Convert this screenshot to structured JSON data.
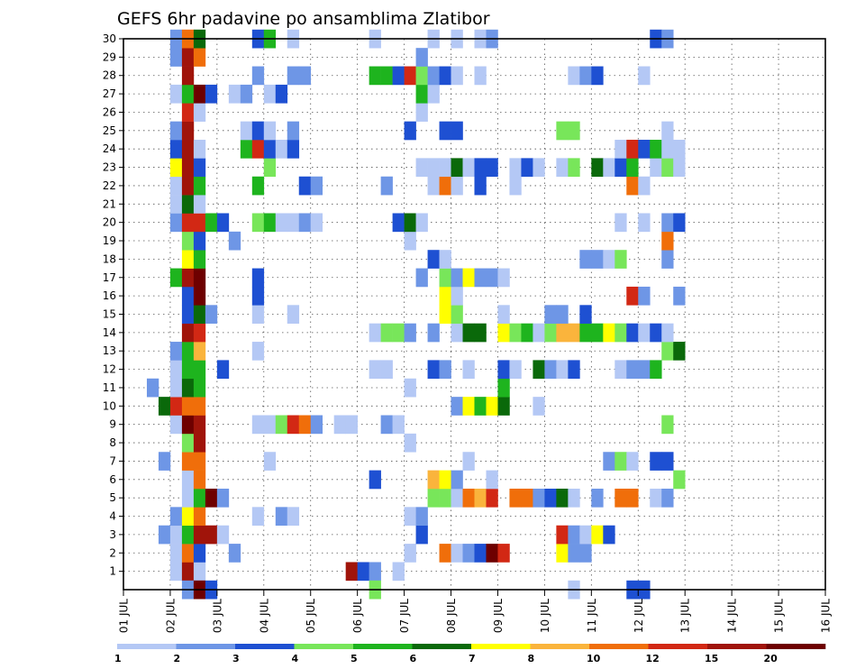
{
  "chart_data": {
    "type": "heatmap",
    "title": "GEFS 6hr padavine po ansamblima Zlatibor",
    "xlabel": "",
    "ylabel": "",
    "x_ticks": [
      "01 JUL",
      "02 JUL",
      "03 JUL",
      "04 JUL",
      "05 JUL",
      "06 JUL",
      "07 JUL",
      "08 JUL",
      "09 JUL",
      "10 JUL",
      "11 JUL",
      "12 JUL",
      "13 JUL",
      "14 JUL",
      "15 JUL",
      "16 JUL"
    ],
    "y_ticks": [
      "1",
      "2",
      "3",
      "4",
      "5",
      "6",
      "7",
      "8",
      "9",
      "10",
      "11",
      "12",
      "13",
      "14",
      "15",
      "16",
      "17",
      "18",
      "19",
      "20",
      "21",
      "22",
      "23",
      "24",
      "25",
      "26",
      "27",
      "28",
      "29",
      "30"
    ],
    "xlim": [
      "01 JUL 00Z",
      "16 JUL 00Z"
    ],
    "ylim": [
      0,
      30
    ],
    "time_step_hours": 6,
    "grid": true,
    "colorbar": {
      "levels": [
        "1",
        "2",
        "3",
        "4",
        "5",
        "6",
        "7",
        "8",
        "10",
        "12",
        "15",
        "20"
      ],
      "colors": [
        "#b4c8f5",
        "#6e96e6",
        "#1e50d2",
        "#78e65a",
        "#1eb41e",
        "#0a690a",
        "#ffff00",
        "#fab43c",
        "#f06e0a",
        "#d22814",
        "#a0140a",
        "#6e0000"
      ]
    },
    "cells": [
      [
        1,
        4,
        1
      ],
      [
        1,
        5,
        11
      ],
      [
        1,
        6,
        1
      ],
      [
        1,
        19,
        11
      ],
      [
        1,
        20,
        3
      ],
      [
        1,
        21,
        2
      ],
      [
        1,
        23,
        1
      ],
      [
        2,
        4,
        1
      ],
      [
        2,
        5,
        9
      ],
      [
        2,
        6,
        3
      ],
      [
        2,
        9,
        2
      ],
      [
        2,
        24,
        1
      ],
      [
        2,
        27,
        9
      ],
      [
        2,
        28,
        1
      ],
      [
        2,
        29,
        2
      ],
      [
        2,
        30,
        3
      ],
      [
        2,
        31,
        12
      ],
      [
        2,
        32,
        10
      ],
      [
        2,
        37,
        7
      ],
      [
        2,
        38,
        2
      ],
      [
        2,
        39,
        2
      ],
      [
        3,
        3,
        2
      ],
      [
        3,
        4,
        1
      ],
      [
        3,
        5,
        5
      ],
      [
        3,
        6,
        11
      ],
      [
        3,
        7,
        11
      ],
      [
        3,
        8,
        1
      ],
      [
        3,
        25,
        3
      ],
      [
        3,
        37,
        10
      ],
      [
        3,
        38,
        2
      ],
      [
        3,
        39,
        1
      ],
      [
        3,
        40,
        7
      ],
      [
        3,
        41,
        3
      ],
      [
        4,
        4,
        2
      ],
      [
        4,
        5,
        7
      ],
      [
        4,
        6,
        9
      ],
      [
        4,
        11,
        1
      ],
      [
        4,
        13,
        2
      ],
      [
        4,
        14,
        1
      ],
      [
        4,
        24,
        1
      ],
      [
        4,
        25,
        2
      ],
      [
        5,
        5,
        1
      ],
      [
        5,
        6,
        5
      ],
      [
        5,
        7,
        12
      ],
      [
        5,
        8,
        2
      ],
      [
        5,
        26,
        4
      ],
      [
        5,
        27,
        4
      ],
      [
        5,
        28,
        1
      ],
      [
        5,
        29,
        9
      ],
      [
        5,
        30,
        8
      ],
      [
        5,
        31,
        10
      ],
      [
        5,
        33,
        9
      ],
      [
        5,
        34,
        9
      ],
      [
        5,
        35,
        2
      ],
      [
        5,
        36,
        3
      ],
      [
        5,
        37,
        6
      ],
      [
        5,
        38,
        1
      ],
      [
        5,
        40,
        2
      ],
      [
        5,
        42,
        9
      ],
      [
        5,
        43,
        9
      ],
      [
        5,
        45,
        1
      ],
      [
        5,
        46,
        2
      ],
      [
        6,
        5,
        1
      ],
      [
        6,
        6,
        9
      ],
      [
        6,
        21,
        3
      ],
      [
        6,
        26,
        8
      ],
      [
        6,
        27,
        7
      ],
      [
        6,
        28,
        2
      ],
      [
        6,
        31,
        1
      ],
      [
        6,
        47,
        4
      ],
      [
        7,
        3,
        2
      ],
      [
        7,
        5,
        9
      ],
      [
        7,
        6,
        9
      ],
      [
        7,
        12,
        1
      ],
      [
        7,
        29,
        1
      ],
      [
        7,
        41,
        2
      ],
      [
        7,
        42,
        4
      ],
      [
        7,
        43,
        1
      ],
      [
        7,
        45,
        3
      ],
      [
        7,
        46,
        3
      ],
      [
        8,
        5,
        4
      ],
      [
        8,
        6,
        11
      ],
      [
        8,
        24,
        1
      ],
      [
        9,
        4,
        1
      ],
      [
        9,
        5,
        12
      ],
      [
        9,
        6,
        11
      ],
      [
        9,
        11,
        1
      ],
      [
        9,
        12,
        1
      ],
      [
        9,
        13,
        4
      ],
      [
        9,
        14,
        10
      ],
      [
        9,
        15,
        9
      ],
      [
        9,
        16,
        2
      ],
      [
        9,
        18,
        1
      ],
      [
        9,
        19,
        1
      ],
      [
        9,
        22,
        2
      ],
      [
        9,
        23,
        1
      ],
      [
        9,
        46,
        4
      ],
      [
        10,
        3,
        6
      ],
      [
        10,
        4,
        10
      ],
      [
        10,
        5,
        9
      ],
      [
        10,
        6,
        9
      ],
      [
        10,
        28,
        2
      ],
      [
        10,
        29,
        7
      ],
      [
        10,
        30,
        5
      ],
      [
        10,
        31,
        7
      ],
      [
        10,
        32,
        6
      ],
      [
        10,
        35,
        1
      ],
      [
        11,
        2,
        2
      ],
      [
        11,
        4,
        1
      ],
      [
        11,
        5,
        6
      ],
      [
        11,
        6,
        5
      ],
      [
        11,
        24,
        1
      ],
      [
        11,
        32,
        5
      ],
      [
        12,
        4,
        1
      ],
      [
        12,
        5,
        5
      ],
      [
        12,
        6,
        5
      ],
      [
        12,
        8,
        3
      ],
      [
        12,
        21,
        1
      ],
      [
        12,
        22,
        1
      ],
      [
        12,
        26,
        3
      ],
      [
        12,
        27,
        2
      ],
      [
        12,
        29,
        1
      ],
      [
        12,
        32,
        3
      ],
      [
        12,
        33,
        1
      ],
      [
        12,
        35,
        6
      ],
      [
        12,
        36,
        2
      ],
      [
        12,
        37,
        1
      ],
      [
        12,
        38,
        3
      ],
      [
        12,
        42,
        1
      ],
      [
        12,
        43,
        2
      ],
      [
        12,
        44,
        2
      ],
      [
        12,
        45,
        5
      ],
      [
        13,
        4,
        2
      ],
      [
        13,
        5,
        5
      ],
      [
        13,
        6,
        8
      ],
      [
        13,
        11,
        1
      ],
      [
        13,
        46,
        4
      ],
      [
        13,
        47,
        6
      ],
      [
        14,
        5,
        11
      ],
      [
        14,
        6,
        10
      ],
      [
        14,
        21,
        1
      ],
      [
        14,
        22,
        4
      ],
      [
        14,
        23,
        4
      ],
      [
        14,
        24,
        2
      ],
      [
        14,
        26,
        2
      ],
      [
        14,
        28,
        1
      ],
      [
        14,
        29,
        6
      ],
      [
        14,
        30,
        6
      ],
      [
        14,
        32,
        7
      ],
      [
        14,
        33,
        4
      ],
      [
        14,
        34,
        5
      ],
      [
        14,
        35,
        1
      ],
      [
        14,
        36,
        4
      ],
      [
        14,
        37,
        8
      ],
      [
        14,
        38,
        8
      ],
      [
        14,
        39,
        5
      ],
      [
        14,
        40,
        5
      ],
      [
        14,
        41,
        7
      ],
      [
        14,
        42,
        4
      ],
      [
        14,
        43,
        3
      ],
      [
        14,
        44,
        1
      ],
      [
        14,
        45,
        3
      ],
      [
        14,
        46,
        1
      ],
      [
        15,
        5,
        3
      ],
      [
        15,
        6,
        6
      ],
      [
        15,
        7,
        2
      ],
      [
        15,
        11,
        1
      ],
      [
        15,
        14,
        1
      ],
      [
        15,
        27,
        7
      ],
      [
        15,
        28,
        4
      ],
      [
        15,
        32,
        1
      ],
      [
        15,
        36,
        2
      ],
      [
        15,
        37,
        2
      ],
      [
        15,
        39,
        3
      ],
      [
        16,
        5,
        3
      ],
      [
        16,
        6,
        12
      ],
      [
        16,
        11,
        3
      ],
      [
        16,
        27,
        7
      ],
      [
        16,
        28,
        1
      ],
      [
        16,
        43,
        10
      ],
      [
        16,
        44,
        2
      ],
      [
        16,
        47,
        2
      ],
      [
        17,
        4,
        5
      ],
      [
        17,
        5,
        11
      ],
      [
        17,
        6,
        12
      ],
      [
        17,
        11,
        3
      ],
      [
        17,
        25,
        2
      ],
      [
        17,
        27,
        4
      ],
      [
        17,
        28,
        2
      ],
      [
        17,
        29,
        7
      ],
      [
        17,
        30,
        2
      ],
      [
        17,
        31,
        2
      ],
      [
        17,
        32,
        1
      ],
      [
        18,
        5,
        7
      ],
      [
        18,
        6,
        5
      ],
      [
        18,
        26,
        3
      ],
      [
        18,
        27,
        1
      ],
      [
        18,
        39,
        2
      ],
      [
        18,
        40,
        2
      ],
      [
        18,
        41,
        1
      ],
      [
        18,
        42,
        4
      ],
      [
        18,
        46,
        2
      ],
      [
        19,
        5,
        4
      ],
      [
        19,
        6,
        3
      ],
      [
        19,
        9,
        2
      ],
      [
        19,
        24,
        1
      ],
      [
        19,
        46,
        9
      ],
      [
        20,
        4,
        2
      ],
      [
        20,
        5,
        10
      ],
      [
        20,
        6,
        10
      ],
      [
        20,
        7,
        5
      ],
      [
        20,
        8,
        3
      ],
      [
        20,
        11,
        4
      ],
      [
        20,
        12,
        5
      ],
      [
        20,
        13,
        1
      ],
      [
        20,
        14,
        1
      ],
      [
        20,
        15,
        2
      ],
      [
        20,
        16,
        1
      ],
      [
        20,
        23,
        3
      ],
      [
        20,
        24,
        6
      ],
      [
        20,
        25,
        1
      ],
      [
        20,
        42,
        1
      ],
      [
        20,
        44,
        1
      ],
      [
        20,
        46,
        2
      ],
      [
        20,
        47,
        3
      ],
      [
        21,
        4,
        1
      ],
      [
        21,
        5,
        6
      ],
      [
        21,
        6,
        1
      ],
      [
        22,
        4,
        1
      ],
      [
        22,
        5,
        11
      ],
      [
        22,
        6,
        5
      ],
      [
        22,
        11,
        5
      ],
      [
        22,
        15,
        3
      ],
      [
        22,
        16,
        2
      ],
      [
        22,
        22,
        2
      ],
      [
        22,
        26,
        1
      ],
      [
        22,
        27,
        9
      ],
      [
        22,
        28,
        1
      ],
      [
        22,
        30,
        3
      ],
      [
        22,
        33,
        1
      ],
      [
        22,
        43,
        9
      ],
      [
        22,
        44,
        1
      ],
      [
        23,
        4,
        7
      ],
      [
        23,
        5,
        11
      ],
      [
        23,
        6,
        3
      ],
      [
        23,
        12,
        4
      ],
      [
        23,
        25,
        1
      ],
      [
        23,
        26,
        1
      ],
      [
        23,
        27,
        1
      ],
      [
        23,
        28,
        6
      ],
      [
        23,
        29,
        1
      ],
      [
        23,
        30,
        3
      ],
      [
        23,
        31,
        3
      ],
      [
        23,
        33,
        1
      ],
      [
        23,
        34,
        3
      ],
      [
        23,
        35,
        1
      ],
      [
        23,
        37,
        1
      ],
      [
        23,
        38,
        4
      ],
      [
        23,
        40,
        6
      ],
      [
        23,
        41,
        1
      ],
      [
        23,
        42,
        3
      ],
      [
        23,
        43,
        5
      ],
      [
        23,
        45,
        1
      ],
      [
        23,
        46,
        4
      ],
      [
        23,
        47,
        1
      ],
      [
        24,
        4,
        3
      ],
      [
        24,
        5,
        11
      ],
      [
        24,
        6,
        1
      ],
      [
        24,
        10,
        5
      ],
      [
        24,
        11,
        10
      ],
      [
        24,
        12,
        3
      ],
      [
        24,
        13,
        1
      ],
      [
        24,
        14,
        3
      ],
      [
        24,
        42,
        1
      ],
      [
        24,
        43,
        10
      ],
      [
        24,
        44,
        3
      ],
      [
        24,
        45,
        5
      ],
      [
        24,
        46,
        1
      ],
      [
        24,
        47,
        1
      ],
      [
        25,
        4,
        2
      ],
      [
        25,
        5,
        11
      ],
      [
        25,
        10,
        1
      ],
      [
        25,
        11,
        3
      ],
      [
        25,
        12,
        1
      ],
      [
        25,
        14,
        2
      ],
      [
        25,
        24,
        3
      ],
      [
        25,
        27,
        3
      ],
      [
        25,
        28,
        3
      ],
      [
        25,
        37,
        4
      ],
      [
        25,
        38,
        4
      ],
      [
        25,
        46,
        1
      ],
      [
        26,
        5,
        10
      ],
      [
        26,
        6,
        1
      ],
      [
        26,
        25,
        1
      ],
      [
        27,
        4,
        1
      ],
      [
        27,
        5,
        5
      ],
      [
        27,
        6,
        12
      ],
      [
        27,
        7,
        3
      ],
      [
        27,
        9,
        1
      ],
      [
        27,
        10,
        2
      ],
      [
        27,
        12,
        1
      ],
      [
        27,
        13,
        3
      ],
      [
        27,
        25,
        5
      ],
      [
        27,
        26,
        1
      ],
      [
        28,
        5,
        11
      ],
      [
        28,
        11,
        2
      ],
      [
        28,
        14,
        2
      ],
      [
        28,
        15,
        2
      ],
      [
        28,
        21,
        5
      ],
      [
        28,
        22,
        5
      ],
      [
        28,
        23,
        3
      ],
      [
        28,
        24,
        10
      ],
      [
        28,
        25,
        4
      ],
      [
        28,
        26,
        2
      ],
      [
        28,
        27,
        3
      ],
      [
        28,
        28,
        1
      ],
      [
        28,
        30,
        1
      ],
      [
        28,
        38,
        1
      ],
      [
        28,
        39,
        2
      ],
      [
        28,
        40,
        3
      ],
      [
        28,
        44,
        1
      ],
      [
        29,
        4,
        2
      ],
      [
        29,
        5,
        11
      ],
      [
        29,
        6,
        9
      ],
      [
        29,
        25,
        2
      ],
      [
        30,
        4,
        2
      ],
      [
        30,
        5,
        9
      ],
      [
        30,
        6,
        6
      ],
      [
        30,
        11,
        3
      ],
      [
        30,
        12,
        5
      ],
      [
        30,
        14,
        1
      ],
      [
        30,
        21,
        1
      ],
      [
        30,
        26,
        1
      ],
      [
        30,
        28,
        1
      ],
      [
        30,
        30,
        1
      ],
      [
        30,
        31,
        2
      ],
      [
        30,
        45,
        3
      ],
      [
        30,
        46,
        2
      ],
      [
        0,
        5,
        2
      ],
      [
        0,
        6,
        12
      ],
      [
        0,
        7,
        3
      ],
      [
        0,
        21,
        4
      ],
      [
        0,
        38,
        1
      ],
      [
        0,
        43,
        3
      ],
      [
        0,
        44,
        3
      ]
    ]
  }
}
